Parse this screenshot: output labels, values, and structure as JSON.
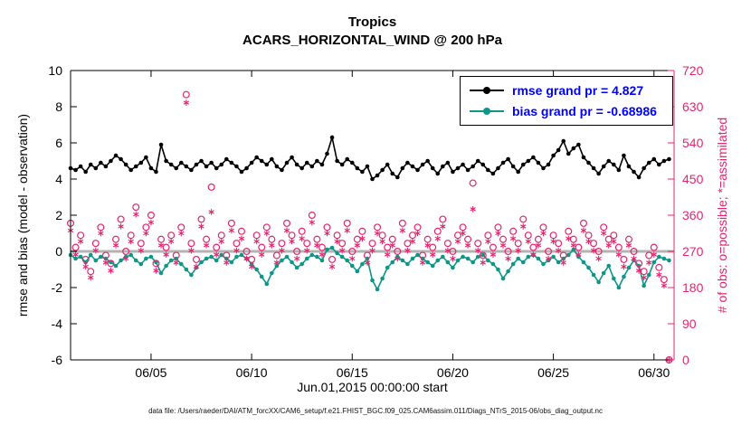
{
  "footer": {
    "data_file_caption": "data file: /Users/raeder/DAI/ATM_forcXX/CAM6_setup/f.e21.FHIST_BGC.f09_025.CAM6assim.011/Diags_NTrS_2015-06/obs_diag_output.nc"
  },
  "chart_data": {
    "type": "line",
    "title": "Tropics",
    "subtitle": "ACARS_HORIZONTAL_WIND @ 200 hPa",
    "xlabel": "Jun.01,2015 00:00:00 start",
    "ylabel_left": "rmse and bias (model - observation)",
    "ylabel_right": "# of obs: o=possible; *=assimilated",
    "x_range_days": [
      0,
      30
    ],
    "x_ticks": [
      {
        "day": 4,
        "label": "06/05"
      },
      {
        "day": 9,
        "label": "06/10"
      },
      {
        "day": 14,
        "label": "06/15"
      },
      {
        "day": 19,
        "label": "06/20"
      },
      {
        "day": 24,
        "label": "06/25"
      },
      {
        "day": 29,
        "label": "06/30"
      }
    ],
    "ylim_left": [
      -6,
      10
    ],
    "yticks_left": [
      -6,
      -4,
      -2,
      0,
      2,
      4,
      6,
      8,
      10
    ],
    "ylim_right": [
      0,
      720
    ],
    "yticks_right": [
      0,
      90,
      180,
      270,
      360,
      450,
      540,
      630,
      720
    ],
    "time_step_days": 0.25,
    "colors": {
      "rmse": "#000000",
      "bias": "#0e9688",
      "obs": "#e3256e",
      "zero_line": "#b3b3b3",
      "legend_text": "#0000ff"
    },
    "legend": [
      {
        "series": "rmse",
        "label": "rmse grand pr = 4.827"
      },
      {
        "series": "bias",
        "label": "bias grand pr = -0.68986"
      }
    ],
    "series": [
      {
        "name": "rmse",
        "axis": "left",
        "marker": "dot",
        "values": [
          4.6,
          4.5,
          4.7,
          4.4,
          4.8,
          4.6,
          4.9,
          4.7,
          5.0,
          5.3,
          5.1,
          4.8,
          4.5,
          4.7,
          4.9,
          5.2,
          4.6,
          4.4,
          5.9,
          5.0,
          4.8,
          4.6,
          4.9,
          4.7,
          4.5,
          4.8,
          5.0,
          4.7,
          4.9,
          4.6,
          4.8,
          5.1,
          4.9,
          4.7,
          4.4,
          4.6,
          4.9,
          5.2,
          5.0,
          4.8,
          5.1,
          4.7,
          4.5,
          4.9,
          5.2,
          4.8,
          4.6,
          4.9,
          4.7,
          5.0,
          4.8,
          5.4,
          6.3,
          5.0,
          4.8,
          5.1,
          4.9,
          4.6,
          4.4,
          4.7,
          4.0,
          4.2,
          4.5,
          4.8,
          4.3,
          4.1,
          4.6,
          4.9,
          4.7,
          4.5,
          4.8,
          5.0,
          4.6,
          4.3,
          4.7,
          4.9,
          4.4,
          4.6,
          4.8,
          4.5,
          4.7,
          5.0,
          4.8,
          4.5,
          4.3,
          4.6,
          4.9,
          5.1,
          4.7,
          4.4,
          4.8,
          5.0,
          5.2,
          4.9,
          4.6,
          4.8,
          5.3,
          5.6,
          6.1,
          5.4,
          5.7,
          5.9,
          5.2,
          4.9,
          4.6,
          4.3,
          4.7,
          5.0,
          4.8,
          4.5,
          5.3,
          4.7,
          4.4,
          4.1,
          4.6,
          4.9,
          5.1,
          4.8,
          5.0,
          5.1
        ]
      },
      {
        "name": "bias",
        "axis": "left",
        "marker": "dot",
        "values": [
          -0.2,
          -0.4,
          -0.3,
          -0.6,
          -0.2,
          -0.5,
          -0.3,
          -0.4,
          -0.6,
          -0.8,
          -0.5,
          -0.3,
          -0.2,
          -0.5,
          -0.7,
          -0.4,
          -0.3,
          -0.6,
          -1.2,
          -0.8,
          -0.5,
          -0.4,
          -0.7,
          -1.0,
          -1.3,
          -0.9,
          -0.6,
          -0.4,
          -0.3,
          -0.5,
          -0.2,
          -0.4,
          -0.6,
          -0.3,
          -0.2,
          -0.4,
          -0.7,
          -1.0,
          -1.4,
          -1.8,
          -1.2,
          -0.8,
          -0.5,
          -0.3,
          -0.6,
          -0.9,
          -0.7,
          -0.4,
          -0.2,
          -0.3,
          -0.5,
          0.1,
          0.2,
          -0.1,
          -0.3,
          -0.5,
          -0.8,
          -1.1,
          -0.7,
          -0.4,
          -1.6,
          -2.1,
          -1.5,
          -0.9,
          -0.6,
          -0.3,
          -0.5,
          -0.7,
          -0.4,
          -0.2,
          -0.4,
          -0.6,
          -0.8,
          -0.5,
          -0.3,
          -0.6,
          -0.9,
          -0.5,
          -0.3,
          -0.4,
          -0.6,
          -0.3,
          -0.2,
          -0.5,
          -0.7,
          -1.0,
          -1.5,
          -1.1,
          -0.7,
          -0.4,
          -0.6,
          -0.3,
          -0.2,
          -0.4,
          -0.7,
          -0.5,
          -0.3,
          -0.6,
          -0.4,
          -0.2,
          0.1,
          -0.3,
          -0.6,
          -0.9,
          -1.3,
          -1.7,
          -1.2,
          -0.8,
          -1.5,
          -2.0,
          -1.4,
          -0.9,
          -0.5,
          -0.8,
          -1.9,
          -1.3,
          -0.6,
          -0.3,
          -0.4,
          -0.5
        ]
      },
      {
        "name": "n_possible",
        "axis": "right",
        "marker": "o",
        "values": [
          340,
          280,
          310,
          250,
          220,
          290,
          330,
          260,
          240,
          300,
          350,
          270,
          310,
          380,
          290,
          330,
          360,
          240,
          300,
          280,
          310,
          260,
          330,
          660,
          290,
          250,
          350,
          300,
          430,
          280,
          310,
          260,
          340,
          290,
          320,
          270,
          250,
          310,
          280,
          330,
          300,
          260,
          290,
          340,
          310,
          270,
          320,
          290,
          360,
          300,
          280,
          330,
          250,
          310,
          290,
          340,
          270,
          300,
          320,
          260,
          290,
          330,
          310,
          280,
          300,
          270,
          340,
          290,
          310,
          330,
          260,
          300,
          280,
          320,
          350,
          290,
          270,
          310,
          330,
          300,
          440,
          290,
          260,
          310,
          280,
          330,
          300,
          270,
          320,
          290,
          350,
          310,
          280,
          300,
          330,
          270,
          310,
          290,
          260,
          320,
          300,
          280,
          340,
          310,
          290,
          270,
          330,
          300,
          310,
          280,
          250,
          300,
          270,
          240,
          220,
          260,
          280,
          230,
          200,
          0
        ]
      },
      {
        "name": "n_assimilated",
        "axis": "right",
        "marker": "*",
        "values": [
          322,
          262,
          295,
          232,
          205,
          272,
          315,
          242,
          222,
          285,
          332,
          252,
          295,
          362,
          272,
          315,
          342,
          222,
          285,
          262,
          295,
          242,
          315,
          640,
          272,
          232,
          332,
          285,
          368,
          262,
          295,
          242,
          322,
          272,
          302,
          252,
          232,
          295,
          262,
          315,
          285,
          242,
          272,
          322,
          295,
          252,
          302,
          272,
          342,
          285,
          262,
          315,
          232,
          295,
          272,
          322,
          252,
          285,
          302,
          242,
          272,
          315,
          295,
          262,
          285,
          252,
          322,
          272,
          295,
          315,
          242,
          285,
          262,
          302,
          332,
          272,
          252,
          295,
          315,
          285,
          375,
          272,
          242,
          295,
          262,
          315,
          285,
          252,
          302,
          272,
          332,
          295,
          262,
          285,
          315,
          252,
          295,
          272,
          242,
          302,
          285,
          262,
          322,
          295,
          272,
          252,
          315,
          285,
          295,
          262,
          232,
          285,
          252,
          222,
          205,
          242,
          262,
          212,
          185,
          0
        ]
      }
    ]
  }
}
